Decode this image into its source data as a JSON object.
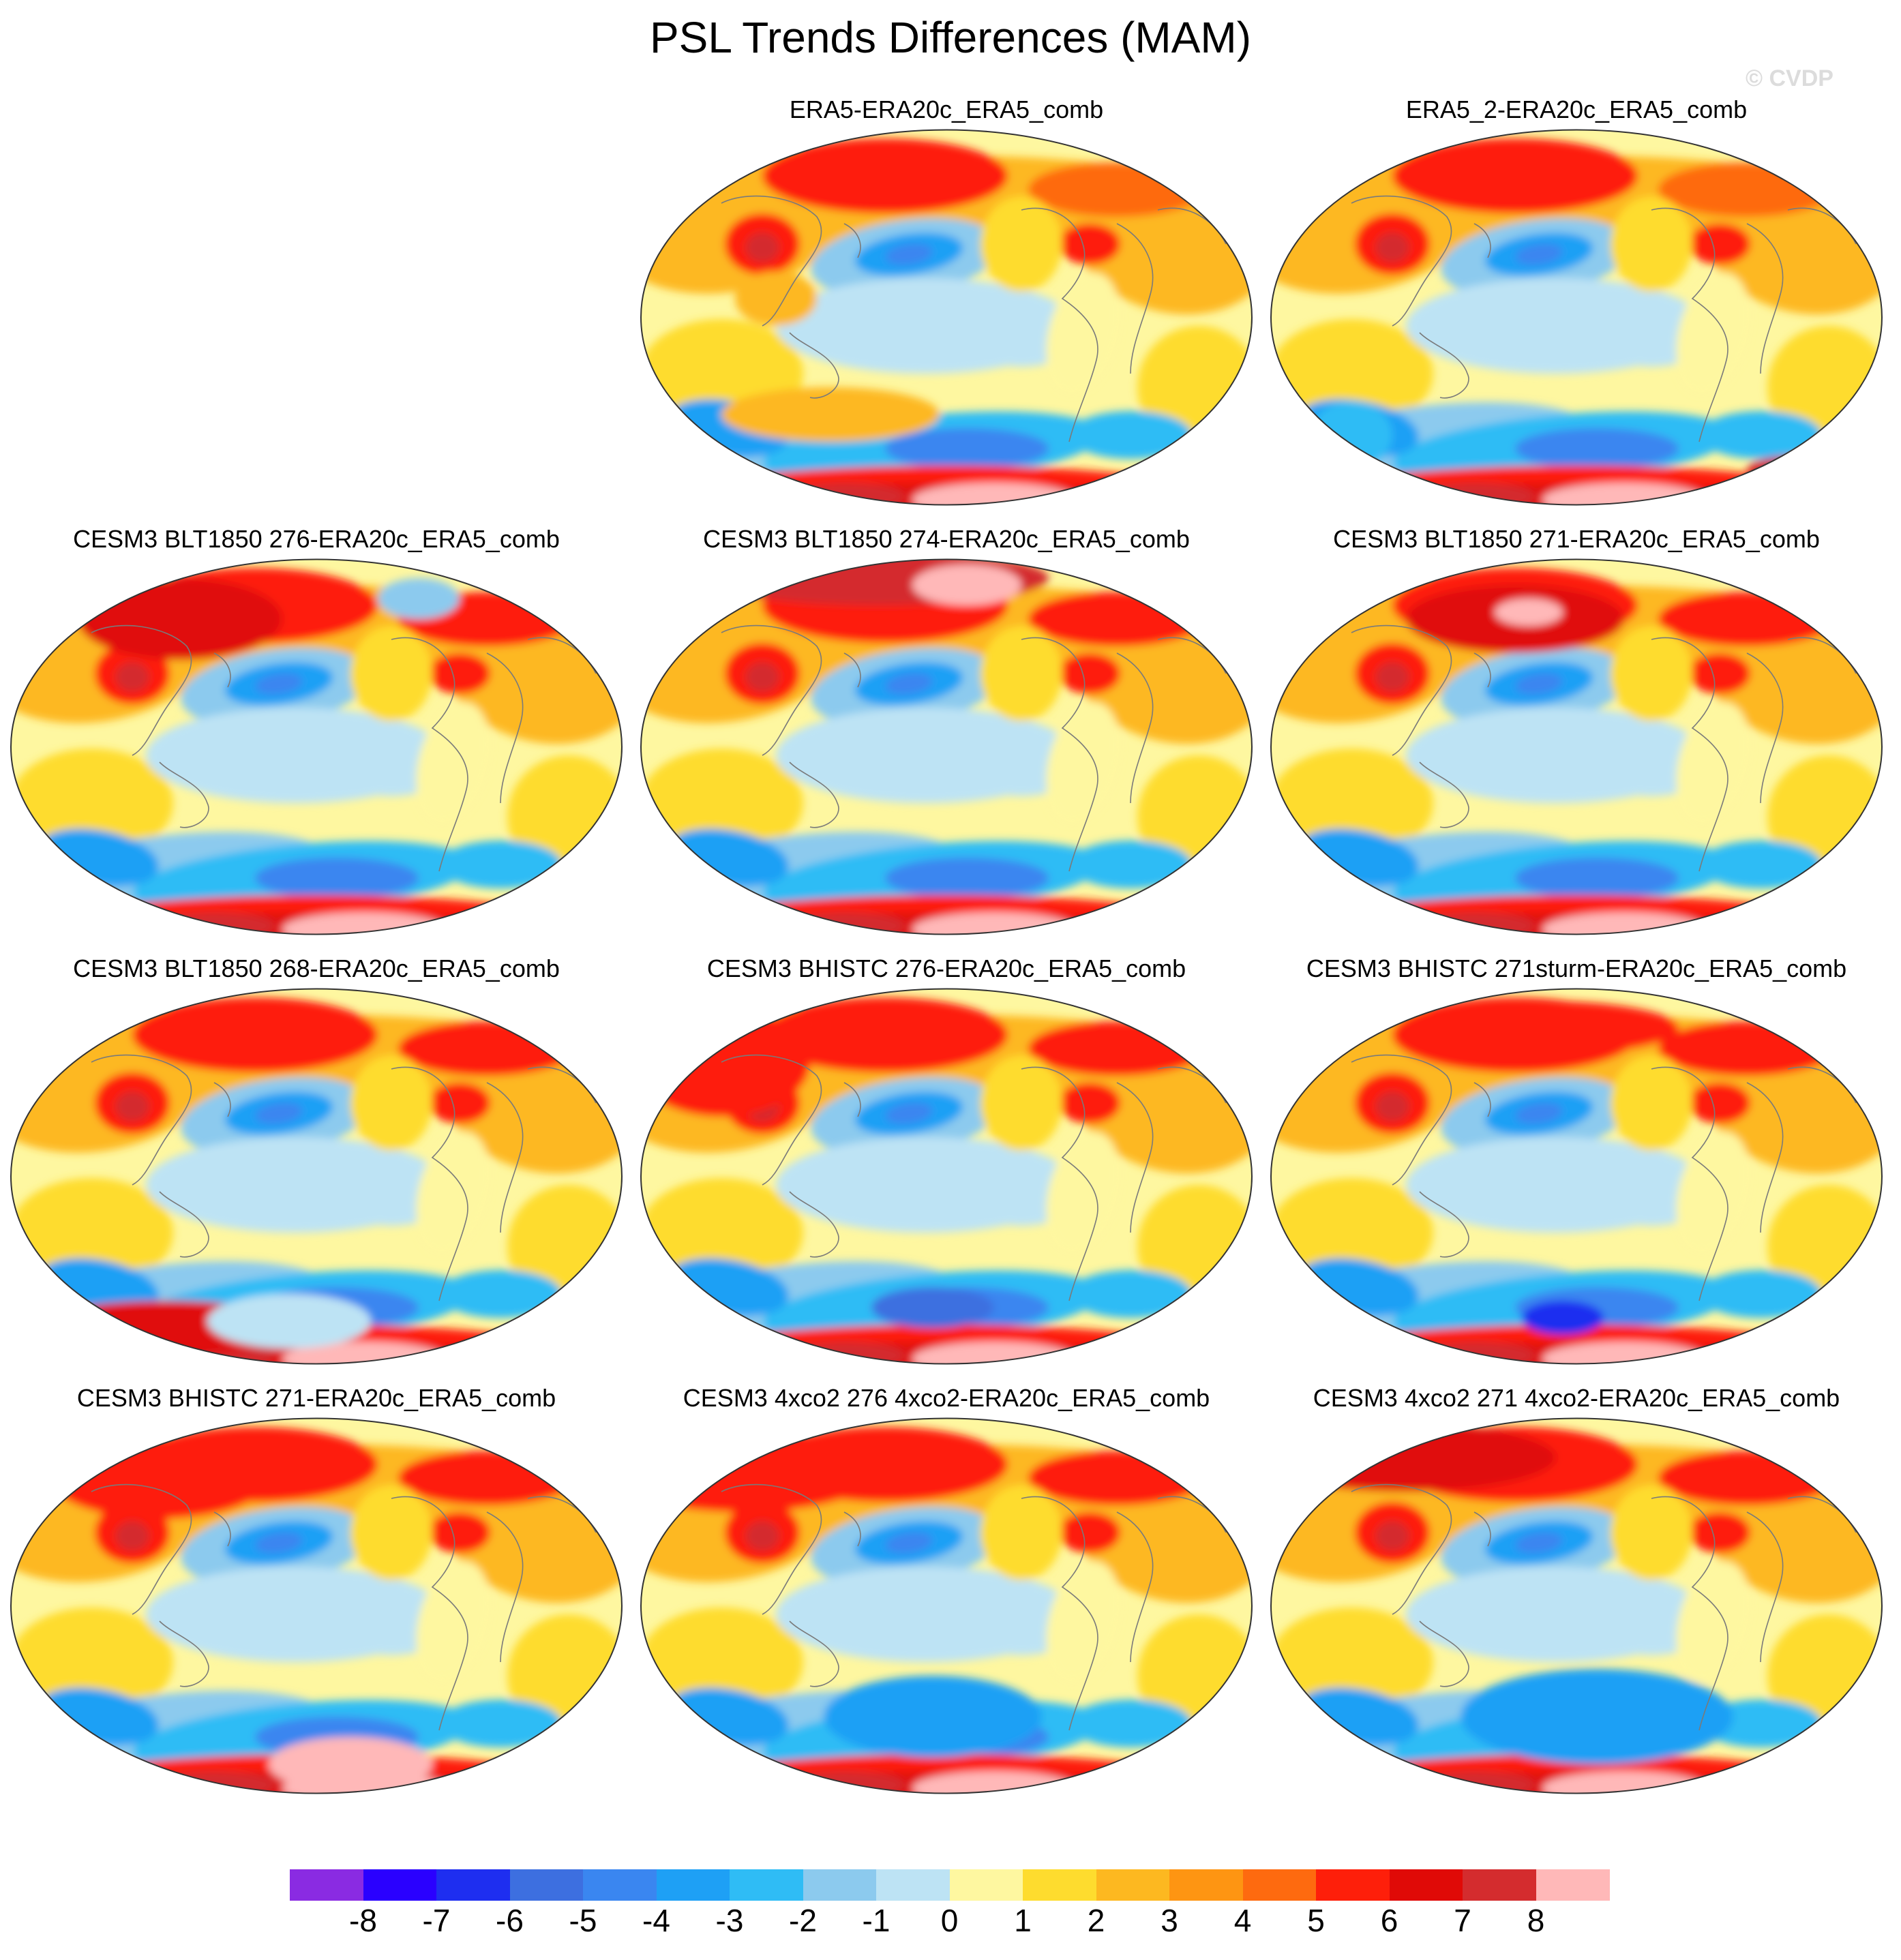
{
  "title": "PSL Trends Differences (MAM)",
  "watermark": "© CVDP",
  "colors": {
    "ocean_base": "#fef7a0",
    "coastline": "#7a7a7a",
    "outline": "#333333"
  },
  "colorbar": {
    "colors": [
      "#8a2be2",
      "#2a00ff",
      "#1e2ef0",
      "#3d6fe0",
      "#3a86f0",
      "#1ea0f5",
      "#2fbcf5",
      "#8ccaee",
      "#bde3f4",
      "#fef7a0",
      "#fedc2e",
      "#fdb820",
      "#fe9512",
      "#fe6a0f",
      "#fe1f0a",
      "#e00a07",
      "#d42c2e",
      "#ffb8b8"
    ],
    "labels": [
      "-8",
      "-7",
      "-6",
      "-5",
      "-4",
      "-3",
      "-2",
      "-1",
      "0",
      "1",
      "2",
      "3",
      "4",
      "5",
      "6",
      "7",
      "8"
    ]
  },
  "panels": [
    {
      "title": "ERA5-ERA20c_ERA5_comb",
      "variant": 0
    },
    {
      "title": "ERA5_2-ERA20c_ERA5_comb",
      "variant": 1
    },
    {
      "title": "CESM3 BLT1850 276-ERA20c_ERA5_comb",
      "variant": 2
    },
    {
      "title": "CESM3 BLT1850 274-ERA20c_ERA5_comb",
      "variant": 3
    },
    {
      "title": "CESM3 BLT1850 271-ERA20c_ERA5_comb",
      "variant": 4
    },
    {
      "title": "CESM3 BLT1850 268-ERA20c_ERA5_comb",
      "variant": 5
    },
    {
      "title": "CESM3 BHISTC 276-ERA20c_ERA5_comb",
      "variant": 6
    },
    {
      "title": "CESM3 BHISTC 271sturm-ERA20c_ERA5_comb",
      "variant": 7
    },
    {
      "title": "CESM3 BHISTC 271-ERA20c_ERA5_comb",
      "variant": 8
    },
    {
      "title": "CESM3 4xco2 276 4xco2-ERA20c_ERA5_comb",
      "variant": 9
    },
    {
      "title": "CESM3 4xco2 271 4xco2-ERA20c_ERA5_comb",
      "variant": 10
    }
  ]
}
